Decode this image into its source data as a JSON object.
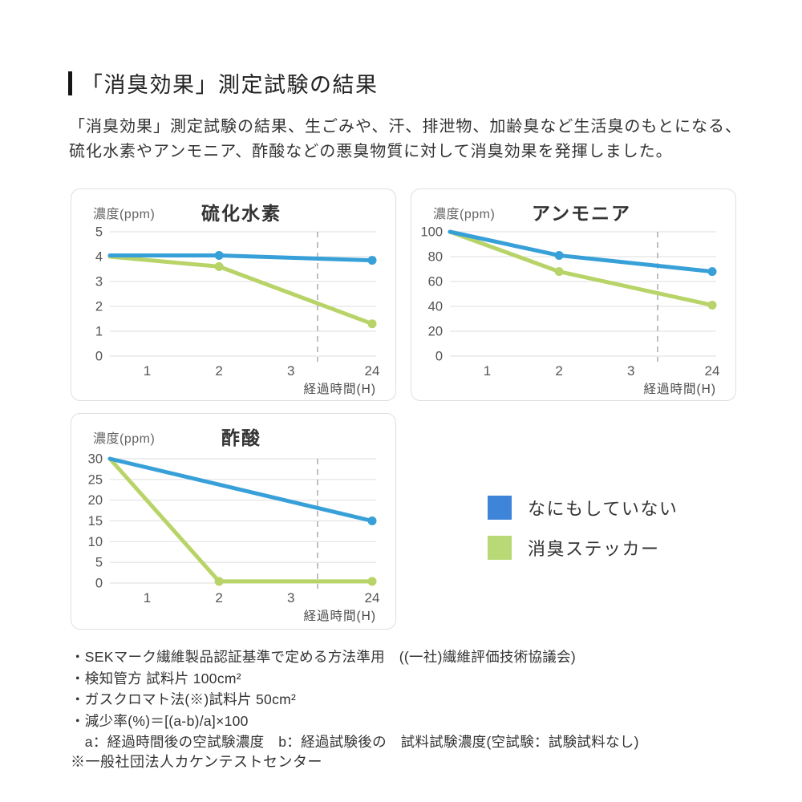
{
  "header": {
    "title": "「消臭効果」測定試験の結果"
  },
  "intro": {
    "line1": "「消臭効果」測定試験の結果、生ごみや、汗、排泄物、加齢臭など生活臭のもとになる、",
    "line2": "硫化水素やアンモニア、酢酸などの悪臭物質に対して消臭効果を発揮しました。"
  },
  "colors": {
    "blue": "#38a0d8",
    "green": "#b8d468",
    "legend_blue": "#3e84d8",
    "legend_green": "#b9d876",
    "grid": "#e3e3e3",
    "dashed": "#b0b0b0",
    "tick_text": "#555555",
    "axis_label_text": "#4a4a4a"
  },
  "chart_data": [
    {
      "type": "line",
      "title": "硫化水素",
      "ylabel": "濃度(ppm)",
      "xlabel": "経過時間(H)",
      "ylim": [
        0,
        5
      ],
      "y_ticks": [
        5,
        4,
        3,
        2,
        1,
        0
      ],
      "x_ticks": [
        1,
        2,
        3,
        24
      ],
      "axis_break_frac": 0.78,
      "series": [
        {
          "name": "なにもしていない",
          "color": "blue",
          "x": [
            0,
            2,
            24
          ],
          "y": [
            4.05,
            4.05,
            3.85
          ],
          "markers": [
            false,
            true,
            true
          ]
        },
        {
          "name": "消臭ステッカー",
          "color": "green",
          "x": [
            0,
            2,
            24
          ],
          "y": [
            4.0,
            3.6,
            1.3
          ],
          "markers": [
            false,
            true,
            true
          ]
        }
      ]
    },
    {
      "type": "line",
      "title": "アンモニア",
      "ylabel": "濃度(ppm)",
      "xlabel": "経過時間(H)",
      "ylim": [
        0,
        100
      ],
      "y_ticks": [
        100,
        80,
        60,
        40,
        20,
        0
      ],
      "x_ticks": [
        1,
        2,
        3,
        24
      ],
      "axis_break_frac": 0.78,
      "series": [
        {
          "name": "なにもしていない",
          "color": "blue",
          "x": [
            0,
            2,
            24
          ],
          "y": [
            100,
            81,
            68
          ],
          "markers": [
            false,
            true,
            true
          ]
        },
        {
          "name": "消臭ステッカー",
          "color": "green",
          "x": [
            0,
            2,
            24
          ],
          "y": [
            100,
            68,
            41
          ],
          "markers": [
            false,
            true,
            true
          ]
        }
      ]
    },
    {
      "type": "line",
      "title": "酢酸",
      "ylabel": "濃度(ppm)",
      "xlabel": "経過時間(H)",
      "ylim": [
        0,
        30
      ],
      "y_ticks": [
        30,
        25,
        20,
        15,
        10,
        5,
        0
      ],
      "x_ticks": [
        1,
        2,
        3,
        24
      ],
      "axis_break_frac": 0.78,
      "series": [
        {
          "name": "なにもしていない",
          "color": "blue",
          "x": [
            0,
            24
          ],
          "y": [
            30,
            15
          ],
          "markers": [
            false,
            true
          ]
        },
        {
          "name": "消臭ステッカー",
          "color": "green",
          "x": [
            0,
            2,
            24
          ],
          "y": [
            30,
            0.4,
            0.4
          ],
          "markers": [
            false,
            true,
            true
          ]
        }
      ]
    }
  ],
  "legend": {
    "items": [
      {
        "label": "なにもしていない",
        "color": "legend_blue"
      },
      {
        "label": "消臭ステッカー",
        "color": "legend_green"
      }
    ]
  },
  "notes": {
    "bullets": [
      "・SEKマーク繊維製品認証基準で定める方法準用　((一社)繊維評価技術協議会)",
      "・検知管方 試料片 100cm²",
      "・ガスクロマト法(※)試料片 50cm²",
      "・減少率(%)＝[(a-b)/a]×100",
      "　a：経過時間後の空試験濃度　b：経過試験後の　試料試験濃度(空試験：試験試料なし)"
    ],
    "footnote": "※一般社団法人カケンテストセンター"
  }
}
